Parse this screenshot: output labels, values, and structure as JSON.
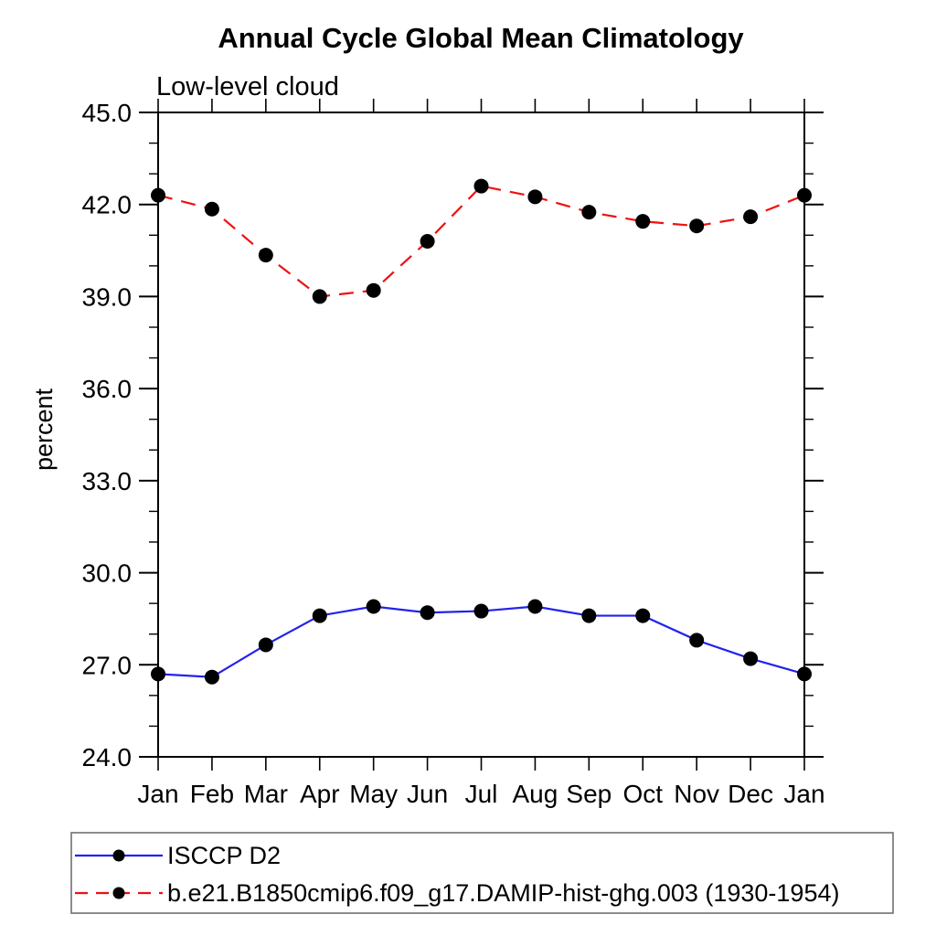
{
  "chart_data": {
    "type": "line",
    "title": "Annual Cycle Global Mean Climatology",
    "subtitle": "Low-level cloud",
    "xlabel": "",
    "ylabel": "percent",
    "categories": [
      "Jan",
      "Feb",
      "Mar",
      "Apr",
      "May",
      "Jun",
      "Jul",
      "Aug",
      "Sep",
      "Oct",
      "Nov",
      "Dec",
      "Jan"
    ],
    "ylim": [
      24.0,
      45.0
    ],
    "yticks_major": [
      24.0,
      27.0,
      30.0,
      33.0,
      36.0,
      39.0,
      42.0,
      45.0
    ],
    "ytick_minor_step": 1.0,
    "grid": false,
    "frame": "box",
    "legend_position": "bottom-left",
    "series": [
      {
        "name": "ISCCP D2",
        "color": "#2222ee",
        "line_style": "solid",
        "marker": "filled-circle",
        "marker_color": "#000000",
        "values": [
          26.7,
          26.6,
          27.65,
          28.6,
          28.9,
          28.7,
          28.75,
          28.9,
          28.6,
          28.6,
          27.8,
          27.2,
          26.7
        ]
      },
      {
        "name": "b.e21.B1850cmip6.f09_g17.DAMIP-hist-ghg.003 (1930-1954)",
        "color": "#ee1111",
        "line_style": "dashed",
        "marker": "filled-circle",
        "marker_color": "#000000",
        "values": [
          42.3,
          41.85,
          40.35,
          39.0,
          39.2,
          40.8,
          42.6,
          42.25,
          41.75,
          41.45,
          41.3,
          41.6,
          42.3
        ]
      }
    ]
  }
}
